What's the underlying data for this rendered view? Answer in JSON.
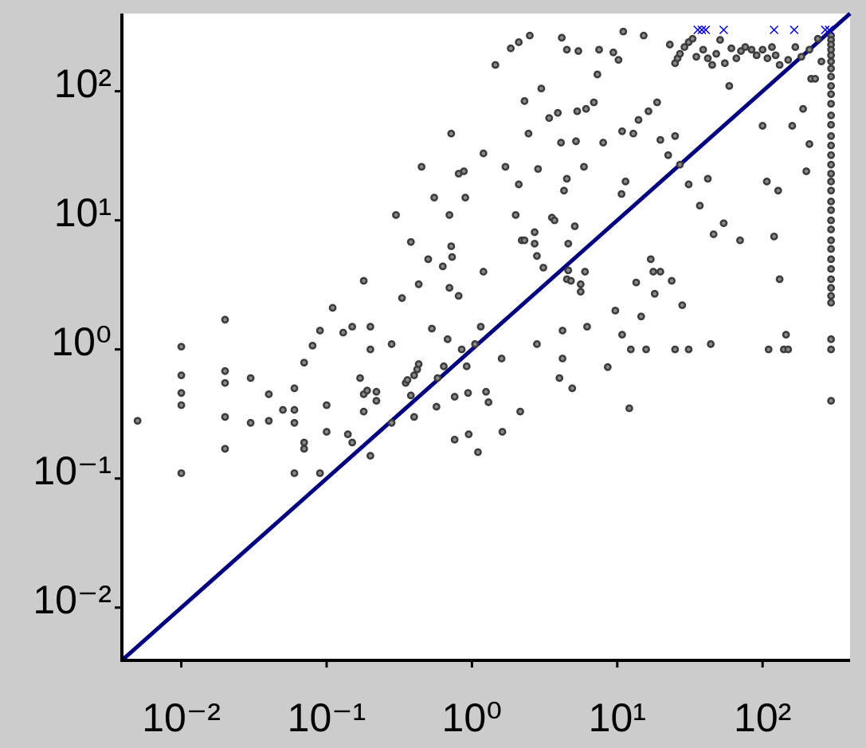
{
  "chart_data": {
    "type": "scatter",
    "xscale": "log",
    "yscale": "log",
    "xlim": [
      0.0039,
      400
    ],
    "ylim": [
      0.0039,
      400
    ],
    "xticks": [
      {
        "value": 0.01,
        "label": "10⁻²"
      },
      {
        "value": 0.1,
        "label": "10⁻¹"
      },
      {
        "value": 1,
        "label": "10⁰"
      },
      {
        "value": 10,
        "label": "10¹"
      },
      {
        "value": 100,
        "label": "10²"
      }
    ],
    "yticks": [
      {
        "value": 0.01,
        "label": "10⁻²"
      },
      {
        "value": 0.1,
        "label": "10⁻¹"
      },
      {
        "value": 1,
        "label": "10⁰"
      },
      {
        "value": 10,
        "label": "10¹"
      },
      {
        "value": 100,
        "label": "10²"
      }
    ],
    "grid": false,
    "reference_line": {
      "x": [
        0.0039,
        400
      ],
      "y": [
        0.0039,
        400
      ],
      "color": "#00007f"
    },
    "series": [
      {
        "marker": "o",
        "color": "#3c3c3c",
        "x": [
          0.005,
          0.01,
          0.01,
          0.01,
          0.01,
          0.01,
          0.02,
          0.02,
          0.02,
          0.02,
          0.02,
          0.03,
          0.03,
          0.04,
          0.04,
          0.05,
          0.06,
          0.06,
          0.06,
          0.06,
          0.07,
          0.07,
          0.07,
          0.08,
          0.09,
          0.09,
          0.1,
          0.1,
          0.11,
          0.13,
          0.14,
          0.15,
          0.15,
          0.17,
          0.18,
          0.18,
          0.18,
          0.19,
          0.2,
          0.2,
          0.2,
          0.22,
          0.22,
          0.28,
          0.28,
          0.3,
          0.33,
          0.35,
          0.36,
          0.38,
          0.38,
          0.4,
          0.4,
          0.42,
          0.43,
          0.43,
          0.45,
          0.5,
          0.53,
          0.55,
          0.57,
          0.58,
          0.63,
          0.64,
          0.68,
          0.72,
          0.7,
          0.72,
          0.73,
          0.7,
          0.76,
          0.76,
          0.81,
          0.81,
          0.85,
          0.88,
          0.9,
          0.92,
          0.94,
          0.95,
          1.05,
          1.15,
          1.1,
          1.2,
          1.2,
          1.25,
          1.3,
          1.45,
          1.6,
          1.62,
          1.7,
          1.85,
          2,
          2.1,
          2.15,
          2.1,
          2.2,
          2.3,
          2.3,
          2.45,
          2.5,
          2.7,
          2.7,
          2.8,
          2.8,
          2.85,
          3,
          3.1,
          3.4,
          3.55,
          3.7,
          3.9,
          4.1,
          4.15,
          4.2,
          4.2,
          4,
          4.3,
          4.5,
          4.5,
          4.5,
          4.6,
          4.6,
          4.8,
          4.9,
          5.1,
          5.2,
          5.3,
          5.4,
          5.6,
          5.6,
          5.9,
          6,
          6.2,
          6.1,
          6.9,
          7.3,
          7.5,
          8,
          8.6,
          9.7,
          9.4,
          10.2,
          10.7,
          10.8,
          11,
          10.8,
          11.4,
          12.1,
          12.4,
          12.9,
          13.5,
          14,
          14.6,
          15.2,
          15.8,
          16.4,
          17,
          17.7,
          18.1,
          18.8,
          19.8,
          19.8,
          22.4,
          25,
          27,
          31,
          37,
          42,
          46,
          54,
          70,
          23.7,
          28,
          25,
          31,
          44,
          100,
          107,
          120,
          110,
          128,
          131,
          145,
          140,
          150,
          160,
          190,
          200,
          210,
          254,
          216,
          23,
          25,
          26,
          27,
          29,
          31,
          33,
          35,
          39,
          42,
          45,
          48,
          51,
          55,
          59,
          61,
          66,
          71,
          76,
          84,
          91,
          100,
          108,
          116,
          123,
          131,
          150,
          168,
          185,
          210,
          230,
          240,
          296,
          296,
          296,
          296,
          296,
          296,
          296,
          296,
          296,
          296,
          296,
          296,
          296,
          296,
          296,
          296,
          296,
          296,
          296,
          296,
          296,
          296,
          296,
          296,
          296,
          296,
          296,
          296,
          296,
          296,
          296,
          296,
          296,
          296,
          296
        ],
        "y": [
          0.28,
          1.05,
          0.63,
          0.46,
          0.37,
          0.11,
          1.7,
          0.68,
          0.55,
          0.3,
          0.17,
          0.6,
          0.27,
          0.45,
          0.28,
          0.34,
          0.5,
          0.34,
          0.27,
          0.11,
          0.79,
          0.19,
          0.17,
          1.07,
          1.4,
          0.11,
          0.37,
          0.23,
          2.1,
          1.35,
          0.22,
          1.5,
          0.19,
          0.6,
          0.45,
          0.33,
          3.4,
          0.48,
          1.5,
          1,
          0.15,
          0.47,
          0.4,
          1.1,
          0.27,
          11,
          2.5,
          0.55,
          0.58,
          6.8,
          0.44,
          0.3,
          0.63,
          0.7,
          3.2,
          0.77,
          26,
          5,
          1.45,
          15,
          0.36,
          0.6,
          4.4,
          0.74,
          1.2,
          47,
          11,
          6.3,
          5.2,
          3,
          0.43,
          0.2,
          23,
          2.6,
          1,
          24,
          15,
          0.74,
          0.46,
          0.22,
          1.1,
          1.5,
          0.16,
          4,
          33,
          0.47,
          0.39,
          160,
          0.85,
          0.23,
          26,
          215,
          11,
          19,
          0.33,
          240,
          7,
          84,
          7,
          47,
          270,
          8.1,
          6.6,
          5.3,
          1.1,
          25,
          105,
          4.3,
          62,
          10.5,
          10,
          68,
          40,
          260,
          1.4,
          0.85,
          0.6,
          17,
          21,
          210,
          3.5,
          6.6,
          4.1,
          3.4,
          0.5,
          9,
          41,
          70,
          205,
          3.2,
          2.8,
          26,
          4,
          1.5,
          73,
          82,
          135,
          210,
          40,
          0.73,
          2,
          200,
          175,
          16,
          49,
          290,
          1.3,
          20,
          0.35,
          1,
          47,
          3.3,
          60,
          1.8,
          270,
          1,
          70,
          5,
          4,
          2.7,
          82,
          4,
          42,
          32,
          45,
          27,
          19,
          13,
          21,
          7.8,
          9.5,
          7,
          3.4,
          2.2,
          1,
          1,
          1.1,
          54,
          20,
          7.5,
          1,
          17,
          3.5,
          1.3,
          1,
          1,
          54,
          73,
          24,
          39,
          170,
          125,
          230,
          165,
          180,
          195,
          220,
          240,
          255,
          185,
          210,
          180,
          160,
          195,
          250,
          165,
          110,
          215,
          180,
          205,
          220,
          210,
          190,
          210,
          180,
          220,
          190,
          160,
          175,
          220,
          185,
          210,
          125,
          255,
          270,
          250,
          230,
          210,
          190,
          170,
          150,
          130,
          110,
          95,
          80,
          65,
          55,
          45,
          38,
          32,
          27,
          23,
          20,
          17,
          14,
          12,
          10,
          8.5,
          7,
          6,
          5,
          4.2,
          3.5,
          3,
          2.6,
          2.3,
          1.2,
          1,
          0.4
        ]
      },
      {
        "marker": "x",
        "color": "#0000e0",
        "x": [
          35.8,
          38.2,
          40.6,
          54,
          120,
          165,
          270,
          287
        ],
        "y": [
          299,
          299,
          299,
          299,
          299,
          299,
          299,
          299
        ]
      }
    ]
  }
}
